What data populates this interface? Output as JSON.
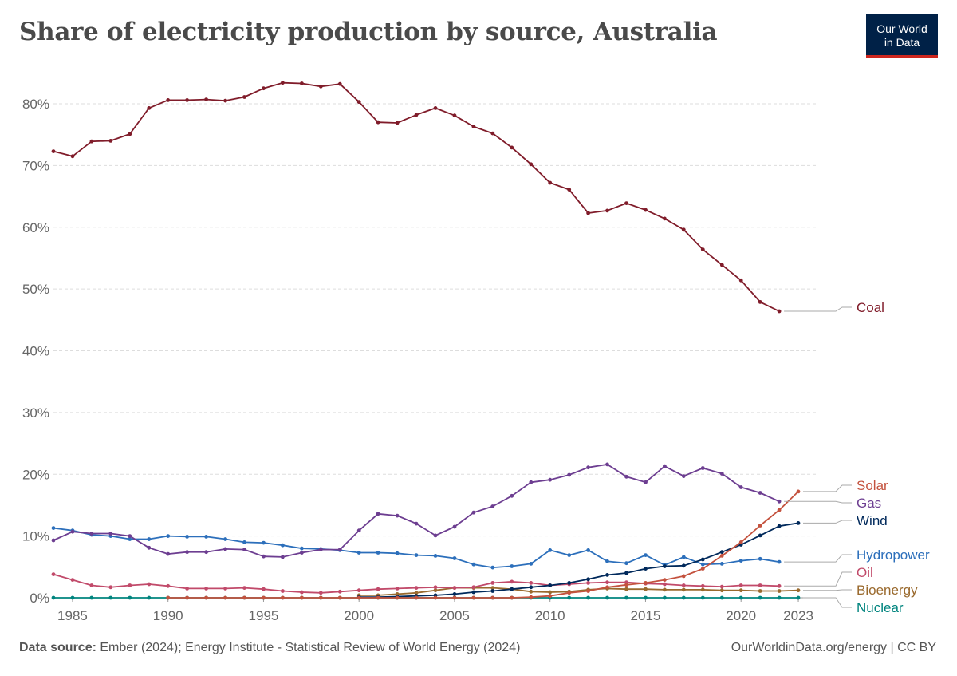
{
  "header": {
    "title": "Share of electricity production by source, Australia",
    "logo_line1": "Our World",
    "logo_line2": "in Data"
  },
  "footer": {
    "source_label": "Data source:",
    "source_text": "Ember (2024); Energy Institute - Statistical Review of World Energy (2024)",
    "right_text": "OurWorldinData.org/energy | CC BY"
  },
  "chart_data": {
    "type": "line",
    "title": "Share of electricity production by source, Australia",
    "xlabel": "",
    "ylabel": "",
    "xlim": [
      1984,
      2024
    ],
    "ylim": [
      0,
      80
    ],
    "y_ticks": [
      0,
      10,
      20,
      30,
      40,
      50,
      60,
      70,
      80
    ],
    "y_tick_labels": [
      "0%",
      "10%",
      "20%",
      "30%",
      "40%",
      "50%",
      "60%",
      "70%",
      "80%"
    ],
    "x_ticks": [
      1985,
      1990,
      1995,
      2000,
      2005,
      2010,
      2015,
      2020,
      2023
    ],
    "x_tick_labels": [
      "1985",
      "1990",
      "1995",
      "2000",
      "2005",
      "2010",
      "2015",
      "2020",
      "2023"
    ],
    "grid": "horizontal dashed",
    "legend": "right, labels at line ends",
    "series": [
      {
        "name": "Coal",
        "color": "#801c2a",
        "x": [
          1984,
          1985,
          1986,
          1987,
          1988,
          1989,
          1990,
          1991,
          1992,
          1993,
          1994,
          1995,
          1996,
          1997,
          1998,
          1999,
          2000,
          2001,
          2002,
          2003,
          2004,
          2005,
          2006,
          2007,
          2008,
          2009,
          2010,
          2011,
          2012,
          2013,
          2014,
          2015,
          2016,
          2017,
          2018,
          2019,
          2020,
          2021,
          2022,
          2023,
          2024
        ],
        "values": [
          72.3,
          71.5,
          73.9,
          74.0,
          75.1,
          79.3,
          80.6,
          80.6,
          80.7,
          80.5,
          81.1,
          82.5,
          83.4,
          83.3,
          82.8,
          83.2,
          80.3,
          77.0,
          76.9,
          78.2,
          79.3,
          78.1,
          76.3,
          75.2,
          72.9,
          70.2,
          67.2,
          66.1,
          62.3,
          62.7,
          63.9,
          62.8,
          61.4,
          59.6,
          56.4,
          53.9,
          51.4,
          47.9,
          46.4,
          null,
          null
        ]
      },
      {
        "name": "Solar",
        "color": "#c4523e",
        "x": [
          1990,
          1991,
          1992,
          1993,
          1994,
          1995,
          1996,
          1997,
          1998,
          1999,
          2000,
          2001,
          2002,
          2003,
          2004,
          2005,
          2006,
          2007,
          2008,
          2009,
          2010,
          2011,
          2012,
          2013,
          2014,
          2015,
          2016,
          2017,
          2018,
          2019,
          2020,
          2021,
          2022,
          2023
        ],
        "values": [
          0,
          0,
          0,
          0,
          0,
          0,
          0,
          0,
          0,
          0,
          0,
          0,
          0,
          0,
          0,
          0,
          0,
          0,
          0,
          0.1,
          0.3,
          0.8,
          1.1,
          1.7,
          2.1,
          2.4,
          2.9,
          3.5,
          4.7,
          6.8,
          9.0,
          11.7,
          14.2,
          17.2
        ]
      },
      {
        "name": "Gas",
        "color": "#6d3e91",
        "x": [
          1984,
          1985,
          1986,
          1987,
          1988,
          1989,
          1990,
          1991,
          1992,
          1993,
          1994,
          1995,
          1996,
          1997,
          1998,
          1999,
          2000,
          2001,
          2002,
          2003,
          2004,
          2005,
          2006,
          2007,
          2008,
          2009,
          2010,
          2011,
          2012,
          2013,
          2014,
          2015,
          2016,
          2017,
          2018,
          2019,
          2020,
          2021,
          2022,
          2023
        ],
        "values": [
          9.3,
          10.7,
          10.4,
          10.4,
          10.0,
          8.1,
          7.1,
          7.4,
          7.4,
          7.9,
          7.8,
          6.7,
          6.6,
          7.3,
          7.8,
          7.8,
          10.9,
          13.6,
          13.3,
          12.0,
          10.1,
          11.5,
          13.8,
          14.8,
          16.5,
          18.7,
          19.1,
          19.9,
          21.1,
          21.6,
          19.6,
          18.7,
          21.3,
          19.7,
          21.0,
          20.1,
          17.9,
          17.0,
          15.6,
          null
        ]
      },
      {
        "name": "Wind",
        "color": "#00295b",
        "x": [
          2000,
          2001,
          2002,
          2003,
          2004,
          2005,
          2006,
          2007,
          2008,
          2009,
          2010,
          2011,
          2012,
          2013,
          2014,
          2015,
          2016,
          2017,
          2018,
          2019,
          2020,
          2021,
          2022,
          2023
        ],
        "values": [
          0.1,
          0.1,
          0.2,
          0.3,
          0.4,
          0.6,
          0.9,
          1.1,
          1.4,
          1.7,
          2.0,
          2.4,
          3.0,
          3.7,
          4.0,
          4.7,
          5.1,
          5.2,
          6.2,
          7.4,
          8.6,
          10.1,
          11.6,
          12.1
        ]
      },
      {
        "name": "Hydropower",
        "color": "#2c6fbb",
        "x": [
          1984,
          1985,
          1986,
          1987,
          1988,
          1989,
          1990,
          1991,
          1992,
          1993,
          1994,
          1995,
          1996,
          1997,
          1998,
          1999,
          2000,
          2001,
          2002,
          2003,
          2004,
          2005,
          2006,
          2007,
          2008,
          2009,
          2010,
          2011,
          2012,
          2013,
          2014,
          2015,
          2016,
          2017,
          2018,
          2019,
          2020,
          2021,
          2022,
          2023
        ],
        "values": [
          11.3,
          10.9,
          10.2,
          10.0,
          9.5,
          9.5,
          10.0,
          9.9,
          9.9,
          9.5,
          9.0,
          8.9,
          8.5,
          8.0,
          7.9,
          7.7,
          7.3,
          7.3,
          7.2,
          6.9,
          6.8,
          6.4,
          5.4,
          4.9,
          5.1,
          5.5,
          7.7,
          6.9,
          7.7,
          5.9,
          5.6,
          6.9,
          5.3,
          6.6,
          5.4,
          5.5,
          6.0,
          6.3,
          5.8,
          null
        ]
      },
      {
        "name": "Oil",
        "color": "#c14a6a",
        "x": [
          1984,
          1985,
          1986,
          1987,
          1988,
          1989,
          1990,
          1991,
          1992,
          1993,
          1994,
          1995,
          1996,
          1997,
          1998,
          1999,
          2000,
          2001,
          2002,
          2003,
          2004,
          2005,
          2006,
          2007,
          2008,
          2009,
          2010,
          2011,
          2012,
          2013,
          2014,
          2015,
          2016,
          2017,
          2018,
          2019,
          2020,
          2021,
          2022,
          2023
        ],
        "values": [
          3.8,
          2.9,
          2.0,
          1.7,
          2.0,
          2.2,
          1.9,
          1.5,
          1.5,
          1.5,
          1.6,
          1.4,
          1.1,
          0.9,
          0.8,
          1.0,
          1.2,
          1.4,
          1.5,
          1.6,
          1.7,
          1.6,
          1.7,
          2.4,
          2.6,
          2.4,
          2.0,
          2.2,
          2.4,
          2.5,
          2.5,
          2.3,
          2.2,
          2.0,
          1.9,
          1.8,
          2.0,
          2.0,
          1.9,
          null
        ]
      },
      {
        "name": "Bioenergy",
        "color": "#9a6a2e",
        "x": [
          2000,
          2001,
          2002,
          2003,
          2004,
          2005,
          2006,
          2007,
          2008,
          2009,
          2010,
          2011,
          2012,
          2013,
          2014,
          2015,
          2016,
          2017,
          2018,
          2019,
          2020,
          2021,
          2022,
          2023
        ],
        "values": [
          0.4,
          0.4,
          0.6,
          0.8,
          1.2,
          1.6,
          1.6,
          1.6,
          1.4,
          1.0,
          0.9,
          1.0,
          1.3,
          1.5,
          1.4,
          1.4,
          1.3,
          1.3,
          1.3,
          1.2,
          1.2,
          1.1,
          1.1,
          1.2
        ]
      },
      {
        "name": "Nuclear",
        "color": "#00847e",
        "x": [
          1984,
          1985,
          1986,
          1987,
          1988,
          1989,
          1990,
          1991,
          1992,
          1993,
          1994,
          1995,
          1996,
          1997,
          1998,
          1999,
          2000,
          2001,
          2002,
          2003,
          2004,
          2005,
          2006,
          2007,
          2008,
          2009,
          2010,
          2011,
          2012,
          2013,
          2014,
          2015,
          2016,
          2017,
          2018,
          2019,
          2020,
          2021,
          2022,
          2023
        ],
        "values": [
          0,
          0,
          0,
          0,
          0,
          0,
          0,
          0,
          0,
          0,
          0,
          0,
          0,
          0,
          0,
          0,
          0,
          0,
          0,
          0,
          0,
          0,
          0,
          0,
          0,
          0,
          0,
          0,
          0,
          0,
          0,
          0,
          0,
          0,
          0,
          0,
          0,
          0,
          0,
          0
        ]
      }
    ]
  }
}
